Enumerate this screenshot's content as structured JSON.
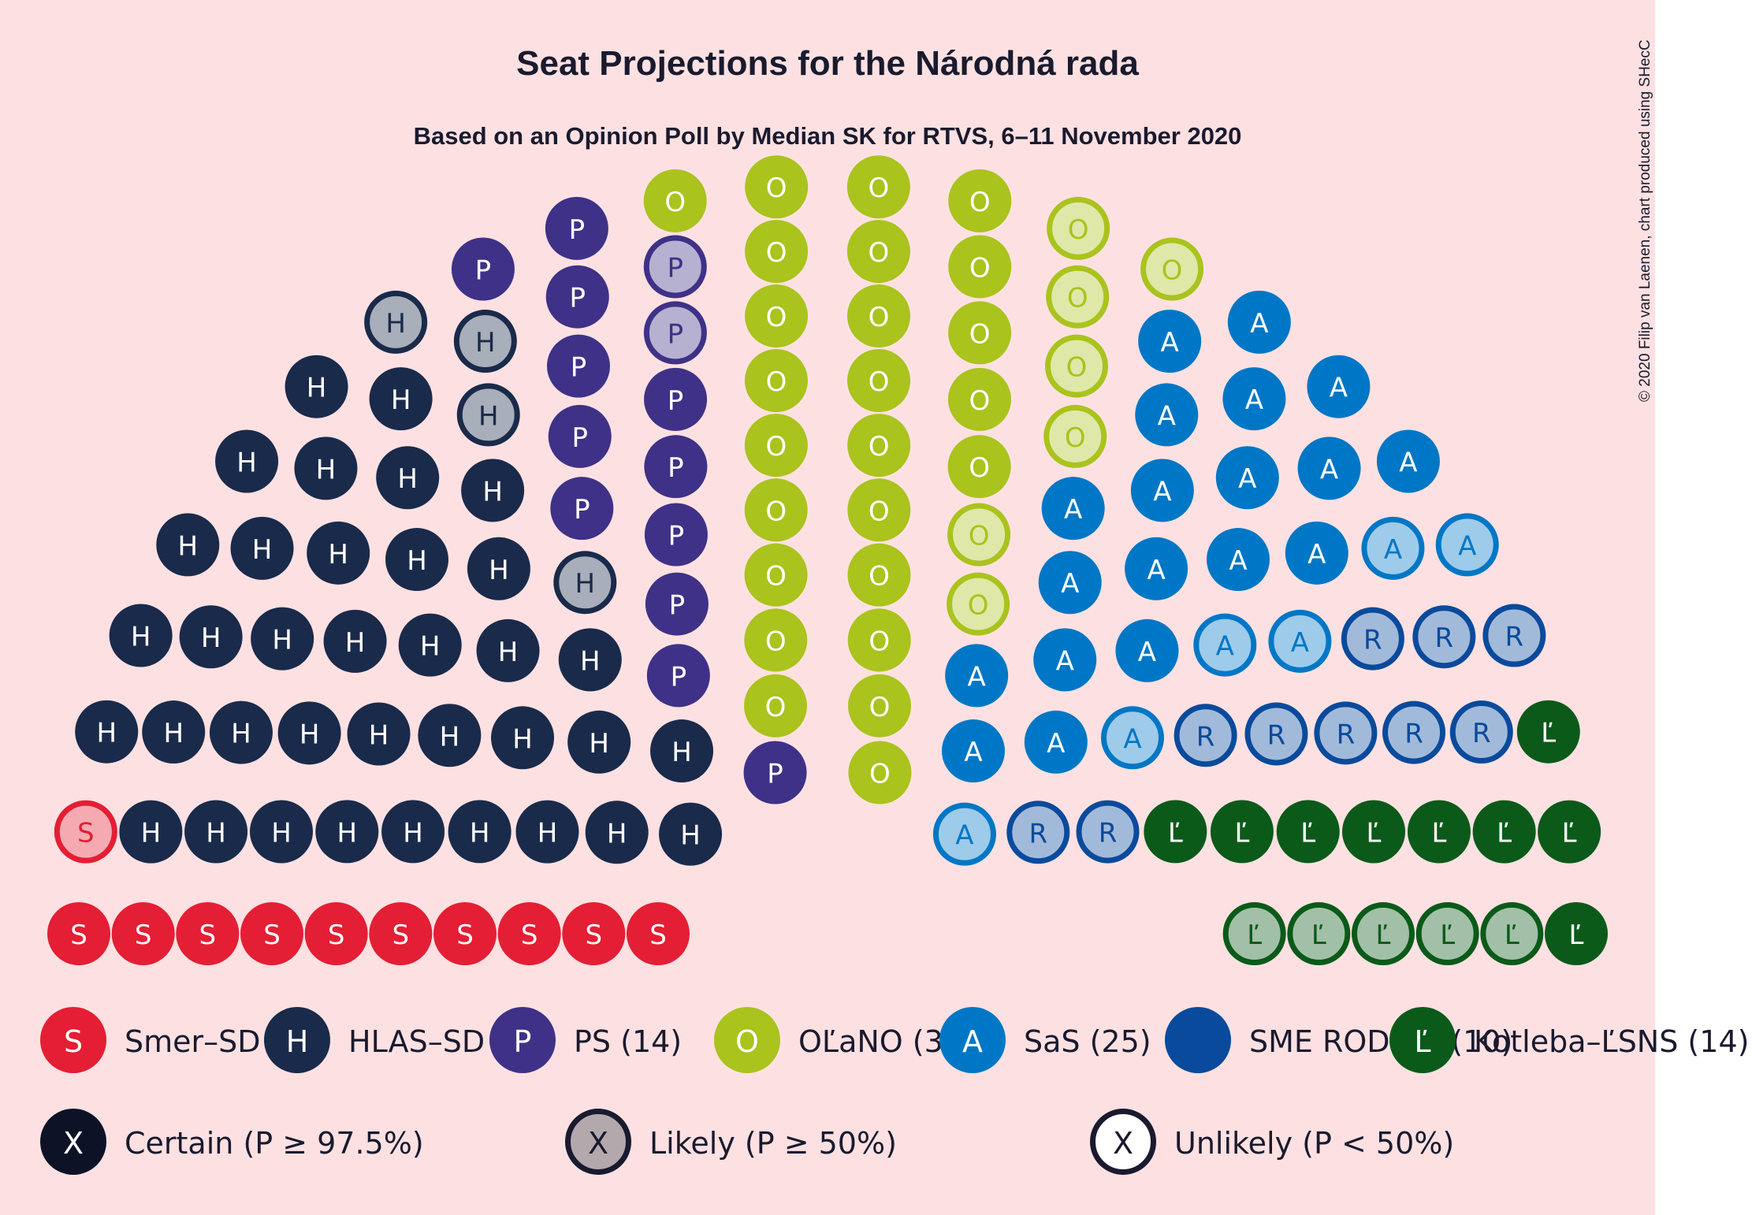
{
  "title": "Seat Projections for the Národná rada",
  "subtitle": "Based on an Opinion Poll by Median SK for RTVS, 6–11 November 2020",
  "credit": "© 2020 Filip van Laenen, chart produced using SHecC",
  "chart_data": {
    "type": "parliament",
    "total_seats": 150,
    "rows": 10,
    "parties": [
      {
        "letter": "S",
        "legend": "Smer–SD (11)",
        "color": "#e41e34",
        "text_color": "#ffffff",
        "certain": 10,
        "likely": 1,
        "unlikely": 0
      },
      {
        "letter": "H",
        "legend": "HLAS–SD (40)",
        "color": "#1a2a4a",
        "text_color": "#ffffff",
        "certain": 36,
        "likely": 4,
        "unlikely": 0
      },
      {
        "letter": "P",
        "legend": "PS (14)",
        "color": "#3f3187",
        "text_color": "#ffffff",
        "certain": 12,
        "likely": 2,
        "unlikely": 0
      },
      {
        "letter": "O",
        "legend": "OĽaNO (32)",
        "color": "#aac31d",
        "text_color": "#ffffff",
        "certain": 25,
        "likely": 7,
        "unlikely": 0
      },
      {
        "letter": "A",
        "legend": "SaS (25)",
        "color": "#0077c6",
        "text_color": "#ffffff",
        "certain": 19,
        "likely": 6,
        "unlikely": 0
      },
      {
        "letter": "R",
        "legend": "SME RODINA (10)",
        "color": "#0a4a9c",
        "text_color": "#0a4a9c",
        "certain": 0,
        "likely": 10,
        "unlikely": 0
      },
      {
        "letter": "Ľ",
        "legend": "Kotleba–ĽSNS (14)",
        "color": "#0b5a19",
        "text_color": "#ffffff",
        "certain": 9,
        "likely": 5,
        "unlikely": 0
      }
    ],
    "certainty_legend": [
      {
        "letter": "X",
        "label": "Certain (P ≥ 97.5%)",
        "kind": "certain"
      },
      {
        "letter": "X",
        "label": "Likely (P ≥ 50%)",
        "kind": "likely"
      },
      {
        "letter": "X",
        "label": "Unlikely (P < 50%)",
        "kind": "unlikely"
      }
    ]
  }
}
